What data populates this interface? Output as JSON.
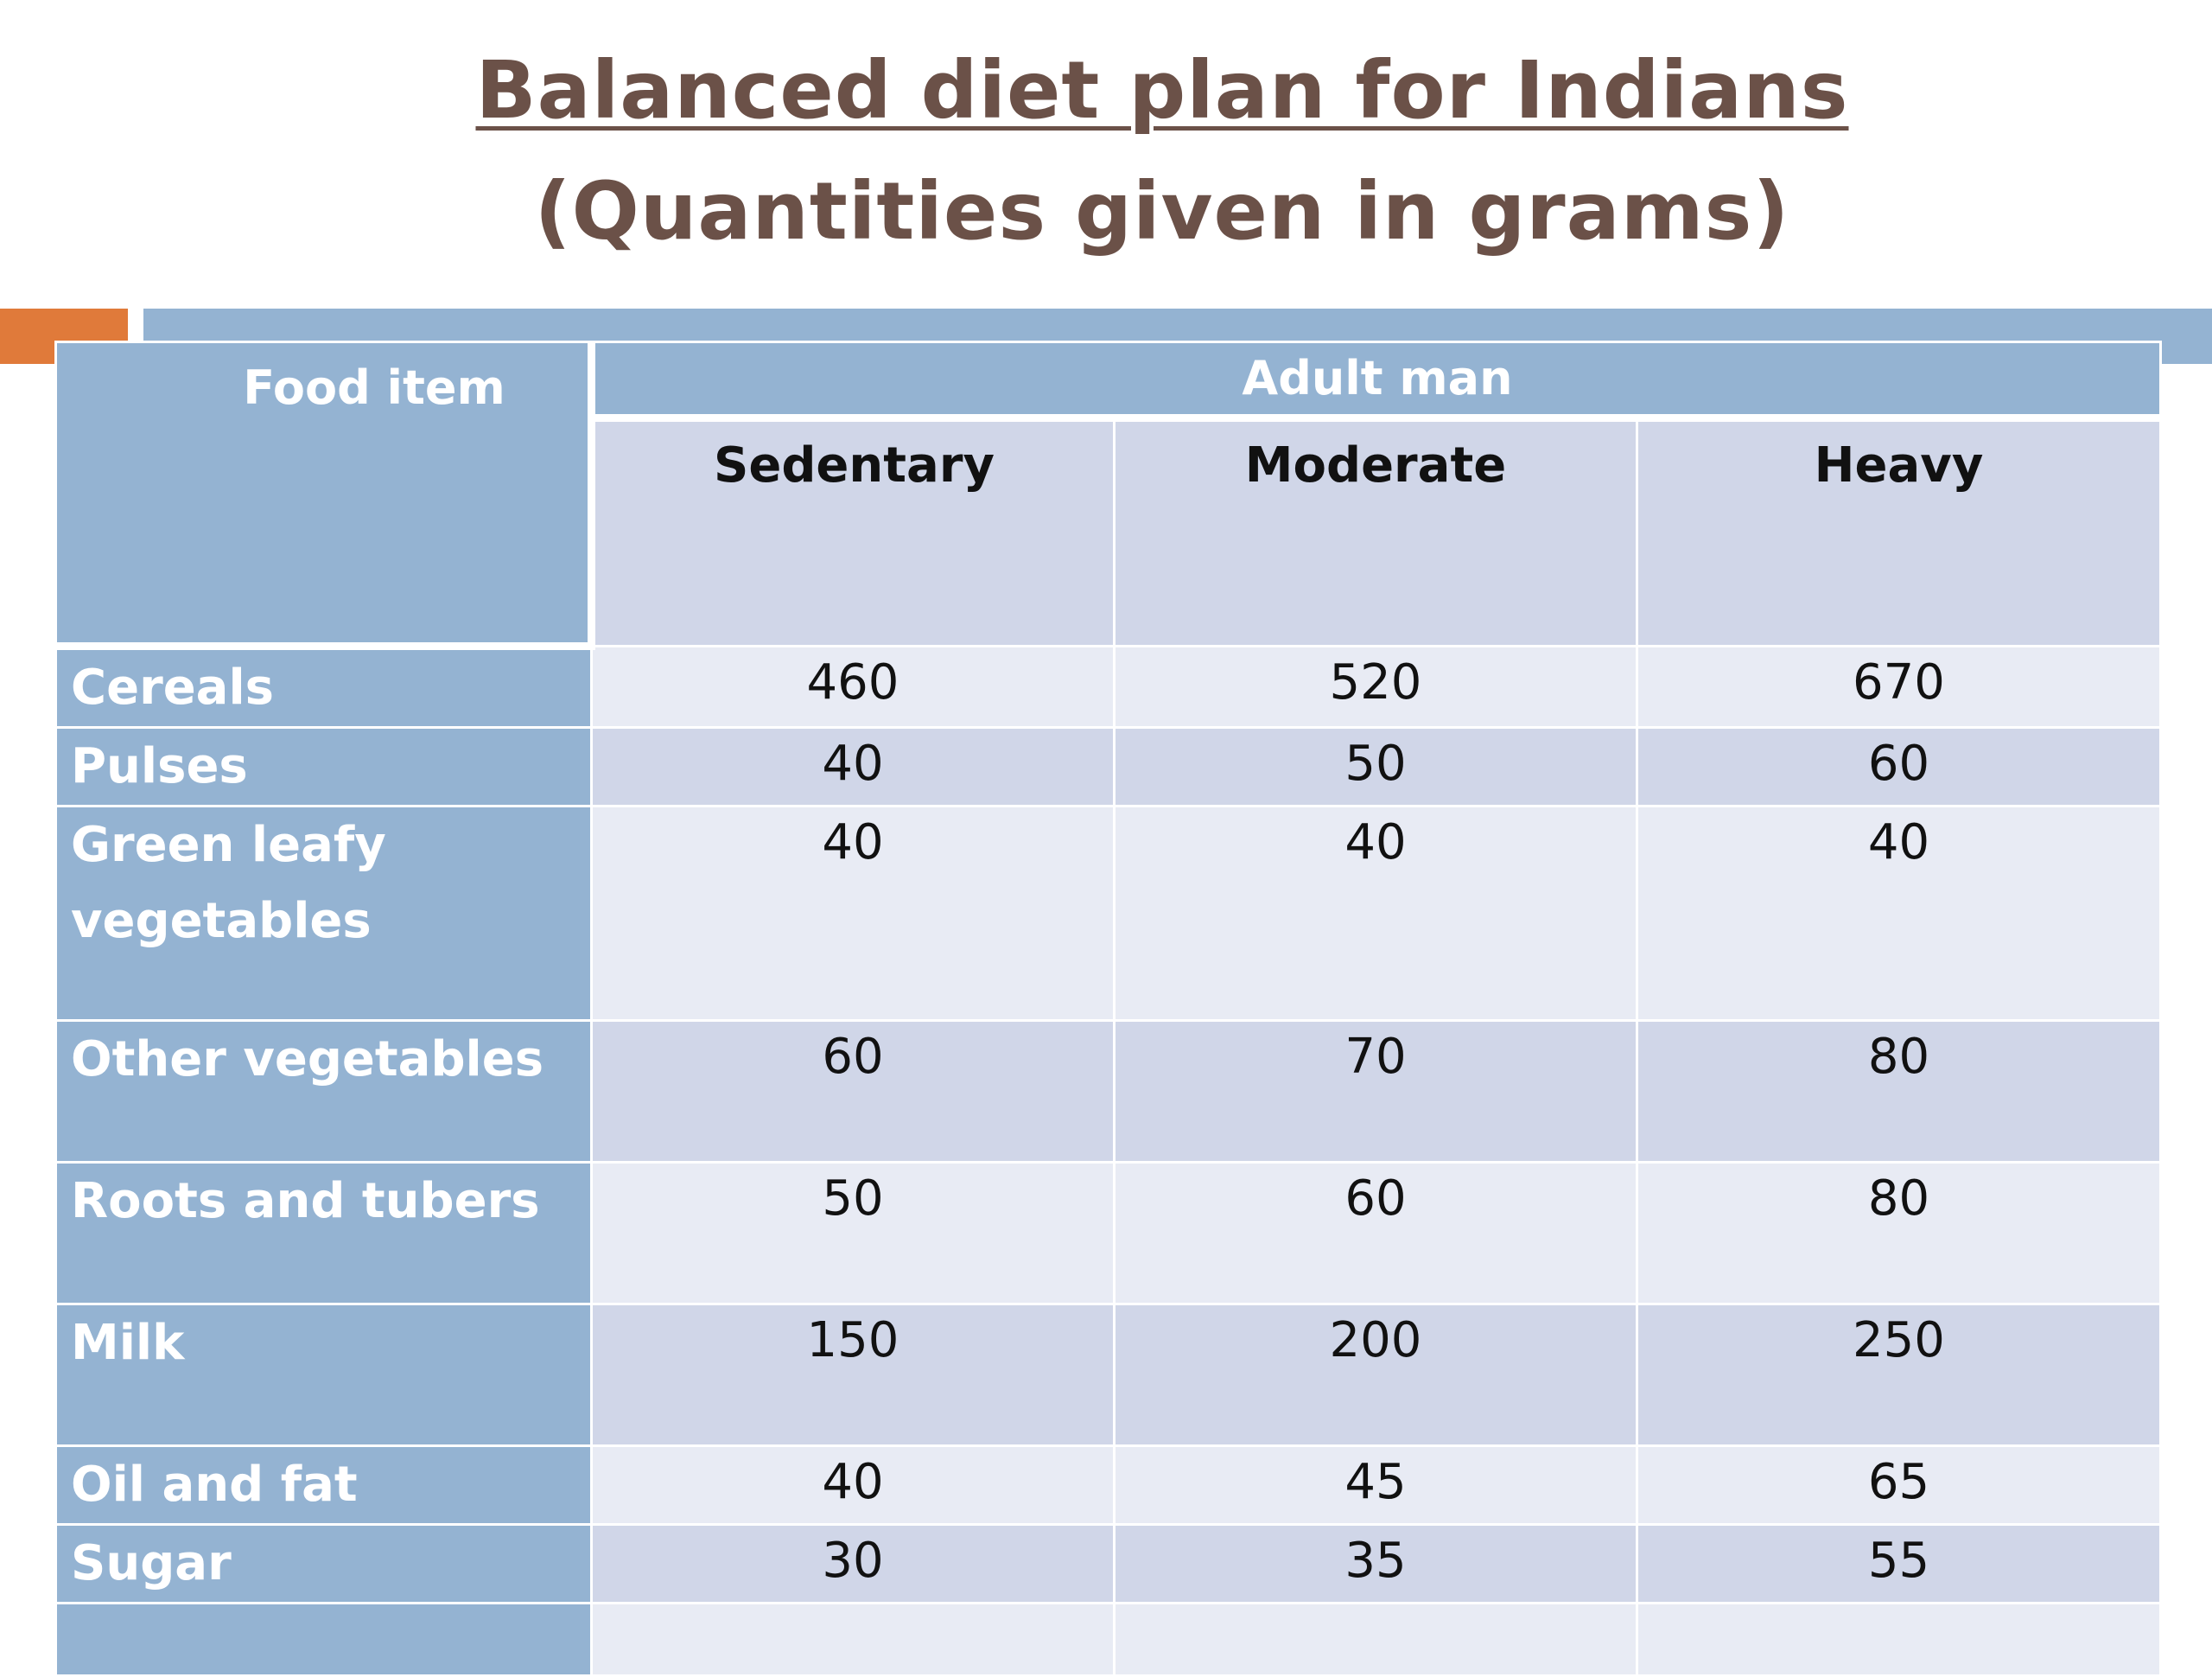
{
  "title": {
    "line1": "Balanced diet plan for Indians",
    "line2": "(Quantities given in grams)"
  },
  "table": {
    "food_header": "Food item",
    "group_header": "Adult man",
    "columns": [
      "Sedentary",
      "Moderate",
      "Heavy"
    ],
    "rows": [
      {
        "label": "Cereals",
        "values": [
          "460",
          "520",
          "670"
        ]
      },
      {
        "label": "Pulses",
        "values": [
          "40",
          "50",
          "60"
        ]
      },
      {
        "label": "Green leafy vegetables",
        "values": [
          "40",
          "40",
          "40"
        ]
      },
      {
        "label": "Other vegetables",
        "values": [
          "60",
          "70",
          "80"
        ]
      },
      {
        "label": "Roots and tubers",
        "values": [
          "50",
          "60",
          "80"
        ]
      },
      {
        "label": "Milk",
        "values": [
          "150",
          "200",
          "250"
        ]
      },
      {
        "label": "Oil and fat",
        "values": [
          "40",
          "45",
          "65"
        ]
      },
      {
        "label": "Sugar",
        "values": [
          "30",
          "35",
          "55"
        ]
      },
      {
        "label": "",
        "values": [
          "",
          "",
          ""
        ]
      }
    ]
  }
}
